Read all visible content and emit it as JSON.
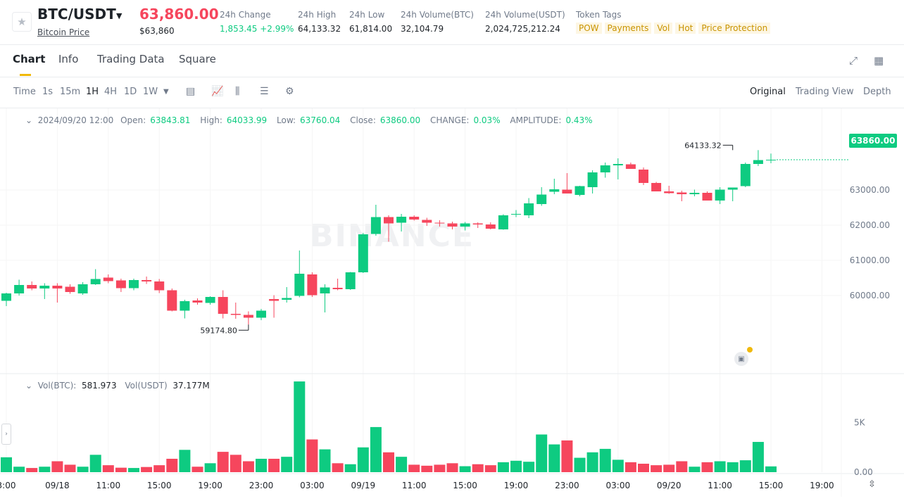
{
  "header": {
    "pair": "BTC/USDT",
    "pair_sub": "Bitcoin Price",
    "last_price": "63,860.00",
    "last_price_usd": "$63,860",
    "stats": [
      {
        "label": "24h Change",
        "value": "1,853.45 +2.99%",
        "color": "#0ecb81"
      },
      {
        "label": "24h High",
        "value": "64,133.32"
      },
      {
        "label": "24h Low",
        "value": "61,814.00"
      },
      {
        "label": "24h Volume(BTC)",
        "value": "32,104.79"
      },
      {
        "label": "24h Volume(USDT)",
        "value": "2,024,725,212.24"
      }
    ],
    "token_tags_label": "Token Tags",
    "tags": [
      "POW",
      "Payments",
      "Vol",
      "Hot",
      "Price Protection"
    ]
  },
  "tabs": [
    "Chart",
    "Info",
    "Trading Data",
    "Square"
  ],
  "toolbar": {
    "intervals": [
      "Time",
      "1s",
      "15m",
      "1H",
      "4H",
      "1D",
      "1W"
    ],
    "selected_interval": "1H",
    "views": [
      "Original",
      "Trading View",
      "Depth"
    ],
    "selected_view": "Original"
  },
  "ohlc": {
    "date": "2024/09/20 12:00",
    "open_label": "Open:",
    "open": "63843.81",
    "high_label": "High:",
    "high": "64033.99",
    "low_label": "Low:",
    "low": "63760.04",
    "close_label": "Close:",
    "close": "63860.00",
    "change_label": "CHANGE:",
    "change": "0.03%",
    "amplitude_label": "AMPLITUDE:",
    "amplitude": "0.43%"
  },
  "volume_legend": {
    "btc_label": "Vol(BTC):",
    "btc": "581.973",
    "usdt_label": "Vol(USDT)",
    "usdt": "37.177M"
  },
  "watermark": "BINANCE",
  "colors": {
    "up": "#0ecb81",
    "down": "#f6465d",
    "accent": "#f0b90b"
  },
  "chart_data": {
    "type": "candlestick",
    "interval": "1H",
    "price_axis_ticks": [
      "60000.00",
      "61000.00",
      "62000.00",
      "63000.00"
    ],
    "price_axis_range": [
      58200,
      64700
    ],
    "current_price_label": "63860.00",
    "high_marker": {
      "label": "64133.32",
      "value": 64133.32,
      "index": 57
    },
    "low_marker": {
      "label": "59174.80",
      "value": 59174.8,
      "index": 19
    },
    "volume_axis_ticks": [
      "5K",
      "0.00"
    ],
    "volume_axis_range": [
      0,
      9300
    ],
    "time_axis_labels": [
      {
        "label": "3:00",
        "index": 0
      },
      {
        "label": "09/18",
        "index": 4
      },
      {
        "label": "11:00",
        "index": 8
      },
      {
        "label": "15:00",
        "index": 12
      },
      {
        "label": "19:00",
        "index": 16
      },
      {
        "label": "23:00",
        "index": 20
      },
      {
        "label": "03:00",
        "index": 24
      },
      {
        "label": "09/19",
        "index": 28
      },
      {
        "label": "11:00",
        "index": 32
      },
      {
        "label": "15:00",
        "index": 36
      },
      {
        "label": "19:00",
        "index": 40
      },
      {
        "label": "23:00",
        "index": 44
      },
      {
        "label": "03:00",
        "index": 48
      },
      {
        "label": "09/20",
        "index": 52
      },
      {
        "label": "11:00",
        "index": 56
      },
      {
        "label": "15:00",
        "index": 60
      },
      {
        "label": "19:00",
        "index": 64
      }
    ],
    "candles": [
      {
        "o": 59850,
        "h": 60080,
        "l": 59700,
        "c": 60060,
        "v": 1500
      },
      {
        "o": 60060,
        "h": 60450,
        "l": 60000,
        "c": 60300,
        "v": 550
      },
      {
        "o": 60300,
        "h": 60400,
        "l": 60150,
        "c": 60200,
        "v": 420
      },
      {
        "o": 60200,
        "h": 60350,
        "l": 59900,
        "c": 60280,
        "v": 550
      },
      {
        "o": 60280,
        "h": 60350,
        "l": 59800,
        "c": 60200,
        "v": 1100
      },
      {
        "o": 60250,
        "h": 60320,
        "l": 60050,
        "c": 60100,
        "v": 750
      },
      {
        "o": 60060,
        "h": 60380,
        "l": 60020,
        "c": 60320,
        "v": 550
      },
      {
        "o": 60320,
        "h": 60750,
        "l": 60300,
        "c": 60470,
        "v": 1750
      },
      {
        "o": 60510,
        "h": 60600,
        "l": 60350,
        "c": 60410,
        "v": 700
      },
      {
        "o": 60430,
        "h": 60480,
        "l": 60100,
        "c": 60210,
        "v": 450
      },
      {
        "o": 60210,
        "h": 60480,
        "l": 60150,
        "c": 60440,
        "v": 420
      },
      {
        "o": 60440,
        "h": 60540,
        "l": 60330,
        "c": 60400,
        "v": 520
      },
      {
        "o": 60400,
        "h": 60470,
        "l": 60070,
        "c": 60150,
        "v": 700
      },
      {
        "o": 60150,
        "h": 60200,
        "l": 59550,
        "c": 59570,
        "v": 1350
      },
      {
        "o": 59570,
        "h": 59880,
        "l": 59350,
        "c": 59840,
        "v": 2250
      },
      {
        "o": 59860,
        "h": 59920,
        "l": 59740,
        "c": 59800,
        "v": 550
      },
      {
        "o": 59790,
        "h": 59980,
        "l": 59740,
        "c": 59960,
        "v": 900
      },
      {
        "o": 59960,
        "h": 60150,
        "l": 59350,
        "c": 59480,
        "v": 2050
      },
      {
        "o": 59480,
        "h": 59800,
        "l": 59340,
        "c": 59450,
        "v": 1750
      },
      {
        "o": 59450,
        "h": 59550,
        "l": 59174.8,
        "c": 59370,
        "v": 1100
      },
      {
        "o": 59370,
        "h": 59620,
        "l": 59300,
        "c": 59570,
        "v": 1350
      },
      {
        "o": 59900,
        "h": 60010,
        "l": 59370,
        "c": 59850,
        "v": 1350
      },
      {
        "o": 59880,
        "h": 60240,
        "l": 59800,
        "c": 59930,
        "v": 1550
      },
      {
        "o": 59990,
        "h": 61280,
        "l": 59950,
        "c": 60620,
        "v": 9150
      },
      {
        "o": 60600,
        "h": 60660,
        "l": 59960,
        "c": 60010,
        "v": 3300
      },
      {
        "o": 60060,
        "h": 60320,
        "l": 59520,
        "c": 60230,
        "v": 2300
      },
      {
        "o": 60220,
        "h": 60480,
        "l": 60150,
        "c": 60180,
        "v": 900
      },
      {
        "o": 60180,
        "h": 60670,
        "l": 60160,
        "c": 60660,
        "v": 800
      },
      {
        "o": 60660,
        "h": 61780,
        "l": 60640,
        "c": 61740,
        "v": 2500
      },
      {
        "o": 61750,
        "h": 62580,
        "l": 61700,
        "c": 62230,
        "v": 4550
      },
      {
        "o": 62230,
        "h": 62280,
        "l": 61530,
        "c": 62050,
        "v": 2000
      },
      {
        "o": 62070,
        "h": 62320,
        "l": 61820,
        "c": 62240,
        "v": 1550
      },
      {
        "o": 62240,
        "h": 62280,
        "l": 62130,
        "c": 62160,
        "v": 750
      },
      {
        "o": 62150,
        "h": 62210,
        "l": 61980,
        "c": 62070,
        "v": 650
      },
      {
        "o": 62070,
        "h": 62140,
        "l": 61960,
        "c": 62050,
        "v": 750
      },
      {
        "o": 62050,
        "h": 62100,
        "l": 61880,
        "c": 61960,
        "v": 900
      },
      {
        "o": 61960,
        "h": 62090,
        "l": 61850,
        "c": 62050,
        "v": 600
      },
      {
        "o": 62050,
        "h": 62080,
        "l": 61920,
        "c": 62020,
        "v": 800
      },
      {
        "o": 62020,
        "h": 62080,
        "l": 61880,
        "c": 61900,
        "v": 700
      },
      {
        "o": 61880,
        "h": 62310,
        "l": 61870,
        "c": 62280,
        "v": 1000
      },
      {
        "o": 62300,
        "h": 62430,
        "l": 62230,
        "c": 62320,
        "v": 1150
      },
      {
        "o": 62280,
        "h": 62770,
        "l": 62200,
        "c": 62620,
        "v": 1050
      },
      {
        "o": 62600,
        "h": 63080,
        "l": 62550,
        "c": 62870,
        "v": 3800
      },
      {
        "o": 62950,
        "h": 63320,
        "l": 62880,
        "c": 63020,
        "v": 2800
      },
      {
        "o": 63010,
        "h": 63480,
        "l": 62920,
        "c": 62900,
        "v": 3200
      },
      {
        "o": 62860,
        "h": 63120,
        "l": 62820,
        "c": 63110,
        "v": 1450
      },
      {
        "o": 63080,
        "h": 63560,
        "l": 62900,
        "c": 63500,
        "v": 2000
      },
      {
        "o": 63500,
        "h": 63780,
        "l": 63350,
        "c": 63700,
        "v": 2350
      },
      {
        "o": 63700,
        "h": 63900,
        "l": 63300,
        "c": 63740,
        "v": 1250
      },
      {
        "o": 63730,
        "h": 63780,
        "l": 63600,
        "c": 63600,
        "v": 1000
      },
      {
        "o": 63580,
        "h": 63640,
        "l": 63140,
        "c": 63200,
        "v": 850
      },
      {
        "o": 63200,
        "h": 63230,
        "l": 62970,
        "c": 62960,
        "v": 700
      },
      {
        "o": 62960,
        "h": 63120,
        "l": 62890,
        "c": 62910,
        "v": 750
      },
      {
        "o": 62930,
        "h": 62980,
        "l": 62680,
        "c": 62880,
        "v": 1100
      },
      {
        "o": 62880,
        "h": 63010,
        "l": 62820,
        "c": 62920,
        "v": 550
      },
      {
        "o": 62920,
        "h": 62960,
        "l": 62700,
        "c": 62700,
        "v": 1000
      },
      {
        "o": 62700,
        "h": 63080,
        "l": 62600,
        "c": 63010,
        "v": 1100
      },
      {
        "o": 63010,
        "h": 63060,
        "l": 62680,
        "c": 63070,
        "v": 1000
      },
      {
        "o": 63110,
        "h": 63780,
        "l": 63080,
        "c": 63740,
        "v": 1200
      },
      {
        "o": 63740,
        "h": 64133.32,
        "l": 63680,
        "c": 63850,
        "v": 3050
      },
      {
        "o": 63843.81,
        "h": 64033.99,
        "l": 63760.04,
        "c": 63860,
        "v": 582
      }
    ]
  }
}
